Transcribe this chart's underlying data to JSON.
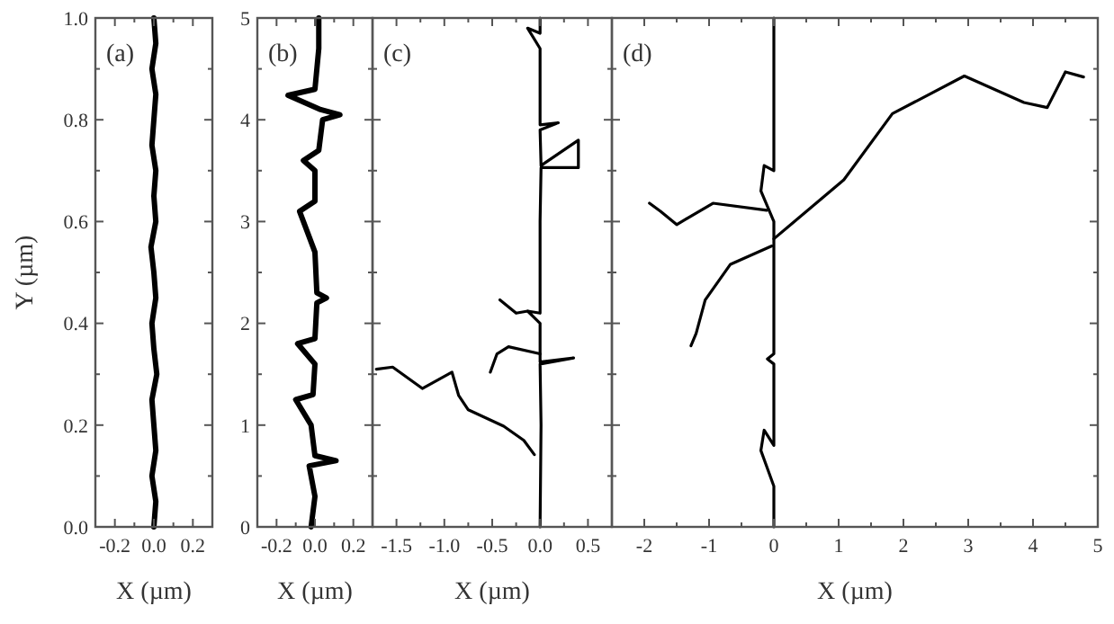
{
  "chart_data": [
    {
      "type": "line",
      "xlabel": "X (µm)",
      "ylabel": "Y (µm)",
      "annotations": [
        "(a)"
      ],
      "xlim": [
        -0.3,
        0.3
      ],
      "xticks": [
        {
          "value": -0.2,
          "label": "-0.2"
        },
        {
          "value": -0.1,
          "label": null
        },
        {
          "value": 0,
          "label": "0.0"
        },
        {
          "value": 0.1,
          "label": null
        },
        {
          "value": 0.2,
          "label": "0.2"
        }
      ],
      "ylim": [
        0,
        1
      ],
      "yticks": [
        {
          "value": 0,
          "label": "0.0"
        },
        {
          "value": 0.1,
          "label": null
        },
        {
          "value": 0.2,
          "label": "0.2"
        },
        {
          "value": 0.3,
          "label": null
        },
        {
          "value": 0.4,
          "label": "0.4"
        },
        {
          "value": 0.5,
          "label": null
        },
        {
          "value": 0.6,
          "label": "0.6"
        },
        {
          "value": 0.7,
          "label": null
        },
        {
          "value": 0.8,
          "label": "0.8"
        },
        {
          "value": 0.9,
          "label": null
        },
        {
          "value": 1,
          "label": "1.0"
        }
      ],
      "series": [
        {
          "color": "#000000",
          "x": [
            0,
            0.01,
            -0.01,
            0.01,
            0,
            -0.01,
            0.015,
            0,
            -0.01,
            0.01,
            0,
            -0.015,
            0.01,
            0,
            0.01,
            -0.01,
            0,
            0.01,
            -0.01,
            0.01,
            0
          ],
          "values": [
            0,
            0.05,
            0.1,
            0.15,
            0.2,
            0.25,
            0.3,
            0.35,
            0.4,
            0.45,
            0.5,
            0.55,
            0.6,
            0.65,
            0.7,
            0.75,
            0.8,
            0.85,
            0.9,
            0.95,
            1
          ]
        }
      ]
    },
    {
      "type": "line",
      "xlabel": "X (µm)",
      "annotations": [
        "(b)"
      ],
      "xlim": [
        -0.3,
        0.3
      ],
      "xticks": [
        {
          "value": -0.2,
          "label": "-0.2"
        },
        {
          "value": -0.1,
          "label": null
        },
        {
          "value": 0,
          "label": "0.0"
        },
        {
          "value": 0.1,
          "label": null
        },
        {
          "value": 0.2,
          "label": "0.2"
        }
      ],
      "ylim": [
        0,
        5
      ],
      "yticks": [
        0,
        {
          "value": 0.5,
          "label": null
        },
        1,
        {
          "value": 1.5,
          "label": null
        },
        2,
        {
          "value": 2.5,
          "label": null
        },
        3,
        {
          "value": 3.5,
          "label": null
        },
        4,
        {
          "value": 4.5,
          "label": null
        },
        5
      ],
      "series": [
        {
          "color": "#000000",
          "x": [
            -0.02,
            0,
            -0.03,
            0.11,
            0,
            -0.02,
            -0.1,
            -0.01,
            0,
            -0.09,
            0,
            0.01,
            0.06,
            0.01,
            0,
            -0.08,
            0,
            0,
            -0.06,
            0.02,
            0.04,
            0.13,
            0.03,
            -0.14,
            0,
            0.02,
            0.02
          ],
          "values": [
            0,
            0.3,
            0.6,
            0.65,
            0.7,
            1,
            1.25,
            1.3,
            1.6,
            1.8,
            1.85,
            2.2,
            2.25,
            2.3,
            2.7,
            3.1,
            3.2,
            3.5,
            3.6,
            3.7,
            4,
            4.05,
            4.1,
            4.24,
            4.3,
            4.7,
            5
          ]
        }
      ]
    },
    {
      "type": "line",
      "xlabel": "X (µm)",
      "annotations": [
        "(c)"
      ],
      "tick_labels": "x",
      "xlim": [
        -1.75,
        0.75
      ],
      "xticks": [
        {
          "value": -1.5,
          "label": "-1.5"
        },
        {
          "value": -1.25,
          "label": null
        },
        {
          "value": -1,
          "label": "-1.0"
        },
        {
          "value": -0.75,
          "label": null
        },
        {
          "value": -0.5,
          "label": "-0.5"
        },
        {
          "value": -0.25,
          "label": null
        },
        {
          "value": 0,
          "label": "0.0"
        },
        {
          "value": 0.25,
          "label": null
        },
        {
          "value": 0.5,
          "label": "0.5"
        }
      ],
      "ylim": [
        0,
        5
      ],
      "yticks": [
        0,
        {
          "value": 0.5,
          "label": null
        },
        1,
        {
          "value": 1.5,
          "label": null
        },
        2,
        {
          "value": 2.5,
          "label": null
        },
        3,
        {
          "value": 3.5,
          "label": null
        },
        4,
        {
          "value": 4.5,
          "label": null
        },
        5
      ],
      "series": [
        {
          "color": "#000000",
          "x": [
            0,
            0.01,
            0,
            0.35,
            0,
            0,
            -0.13,
            0,
            0,
            0.01,
            0.4,
            0.4,
            0.01,
            0,
            0.19,
            0,
            0,
            -0.13,
            0,
            0
          ],
          "values": [
            0,
            1,
            1.6,
            1.66,
            1.62,
            2,
            2.12,
            2.1,
            3,
            3.53,
            3.53,
            3.8,
            3.55,
            3.9,
            3.97,
            3.95,
            4.7,
            4.9,
            4.85,
            5
          ]
        },
        {
          "color": "#000000",
          "x": [
            -0.06,
            -0.17,
            -0.38,
            -0.75,
            -0.85,
            -0.92,
            -1.23,
            -1.54,
            -1.71
          ],
          "values": [
            0.71,
            0.85,
            0.99,
            1.15,
            1.29,
            1.52,
            1.36,
            1.57,
            1.55
          ]
        },
        {
          "color": "#000000",
          "x": [
            -0.52,
            -0.45,
            -0.33,
            0
          ],
          "values": [
            1.52,
            1.7,
            1.77,
            1.7
          ]
        },
        {
          "color": "#000000",
          "x": [
            -0.42,
            -0.25,
            -0.13
          ],
          "values": [
            2.23,
            2.1,
            2.12
          ]
        }
      ]
    },
    {
      "type": "line",
      "xlabel": "X (µm)",
      "annotations": [
        "(d)"
      ],
      "tick_labels": "x",
      "xlim": [
        -2.5,
        5
      ],
      "xticks": [
        -2,
        {
          "value": -1.5,
          "label": null
        },
        -1,
        {
          "value": -0.5,
          "label": null
        },
        0,
        {
          "value": 0.5,
          "label": null
        },
        1,
        {
          "value": 1.5,
          "label": null
        },
        2,
        {
          "value": 2.5,
          "label": null
        },
        3,
        {
          "value": 3.5,
          "label": null
        },
        4,
        {
          "value": 4.5,
          "label": null
        },
        5
      ],
      "ylim": [
        0,
        5
      ],
      "yticks": [
        0,
        {
          "value": 0.5,
          "label": null
        },
        1,
        {
          "value": 1.5,
          "label": null
        },
        2,
        {
          "value": 2.5,
          "label": null
        },
        3,
        {
          "value": 3.5,
          "label": null
        },
        4,
        {
          "value": 4.5,
          "label": null
        },
        5
      ],
      "series": [
        {
          "color": "#000000",
          "x": [
            0,
            0,
            -0.2,
            -0.15,
            0,
            0,
            -0.1,
            0,
            0,
            -0.2,
            -0.15,
            0,
            0
          ],
          "values": [
            0,
            0.4,
            0.75,
            0.95,
            0.8,
            1.6,
            1.65,
            1.7,
            3,
            3.3,
            3.55,
            3.5,
            5
          ]
        },
        {
          "color": "#000000",
          "x": [
            0,
            1.08,
            1.83,
            2.94,
            3.86,
            4.22,
            4.5,
            4.78
          ],
          "values": [
            2.83,
            3.41,
            4.06,
            4.43,
            4.17,
            4.12,
            4.47,
            4.42
          ]
        },
        {
          "color": "#000000",
          "x": [
            -0.11,
            -0.94,
            -1.5,
            -1.75,
            -1.92
          ],
          "values": [
            3.11,
            3.18,
            2.97,
            3.1,
            3.18
          ]
        },
        {
          "color": "#000000",
          "x": [
            -0.03,
            -0.67,
            -1.06,
            -1.2,
            -1.28
          ],
          "values": [
            2.76,
            2.58,
            2.23,
            1.9,
            1.78
          ]
        }
      ]
    }
  ]
}
